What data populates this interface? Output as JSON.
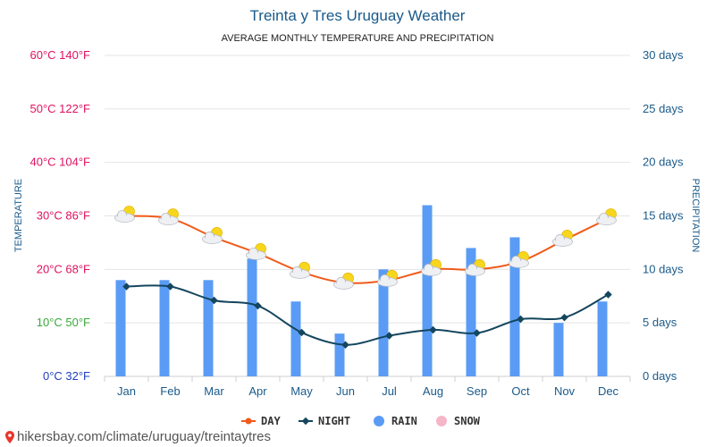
{
  "chart_data": {
    "type": "bar",
    "title": "Treinta y Tres Uruguay Weather",
    "subtitle": "AVERAGE MONTHLY TEMPERATURE AND PRECIPITATION",
    "ylabel_left": "TEMPERATURE",
    "ylabel_right": "PRECIPITATION",
    "categories": [
      "Jan",
      "Feb",
      "Mar",
      "Apr",
      "May",
      "Jun",
      "Jul",
      "Aug",
      "Sep",
      "Oct",
      "Nov",
      "Dec"
    ],
    "left_ticks": [
      {
        "value": 0,
        "label": "0°C 32°F",
        "color": "#1f3fbf"
      },
      {
        "value": 10,
        "label": "10°C 50°F",
        "color": "#3aa83a"
      },
      {
        "value": 20,
        "label": "20°C 68°F",
        "color": "#e0115f"
      },
      {
        "value": 30,
        "label": "30°C 86°F",
        "color": "#e0115f"
      },
      {
        "value": 40,
        "label": "40°C 104°F",
        "color": "#e0115f"
      },
      {
        "value": 50,
        "label": "50°C 122°F",
        "color": "#e0115f"
      },
      {
        "value": 60,
        "label": "60°C 140°F",
        "color": "#e0115f"
      }
    ],
    "right_ticks": [
      {
        "value": 0,
        "label": "0 days"
      },
      {
        "value": 5,
        "label": "5 days"
      },
      {
        "value": 10,
        "label": "10 days"
      },
      {
        "value": 15,
        "label": "15 days"
      },
      {
        "value": 20,
        "label": "20 days"
      },
      {
        "value": 25,
        "label": "25 days"
      },
      {
        "value": 30,
        "label": "30 days"
      }
    ],
    "ylim_left": [
      0,
      60
    ],
    "ylim_right": [
      0,
      30
    ],
    "series": [
      {
        "name": "DAY",
        "axis": "left",
        "color": "#f05a1a",
        "values": [
          30,
          29.5,
          26,
          23,
          19.5,
          17.5,
          18,
          20,
          20,
          21.5,
          25.5,
          29.5
        ]
      },
      {
        "name": "NIGHT",
        "axis": "left",
        "color": "#14465e",
        "values": [
          16.8,
          16.8,
          14.2,
          13.2,
          8.2,
          5.9,
          7.6,
          8.7,
          8.1,
          10.7,
          11.0,
          15.3
        ]
      },
      {
        "name": "RAIN",
        "axis": "right",
        "color": "#5a9cf5",
        "values": [
          9,
          9,
          9,
          11,
          7,
          4,
          10,
          16,
          12,
          13,
          5,
          7
        ]
      },
      {
        "name": "SNOW",
        "axis": "right",
        "color": "#f5b6c8",
        "values": [
          0,
          0,
          0,
          0,
          0,
          0,
          0,
          0,
          0,
          0,
          0,
          0
        ]
      }
    ],
    "grid": true,
    "legend_position": "bottom"
  },
  "footer": {
    "text": "hikersbay.com/climate/uruguay/treintaytres",
    "pin_icon": "map-pin-icon",
    "pin_color": "#e8382c"
  },
  "colors": {
    "title": "#1a5a8a",
    "grid": "#e4e4e4"
  }
}
